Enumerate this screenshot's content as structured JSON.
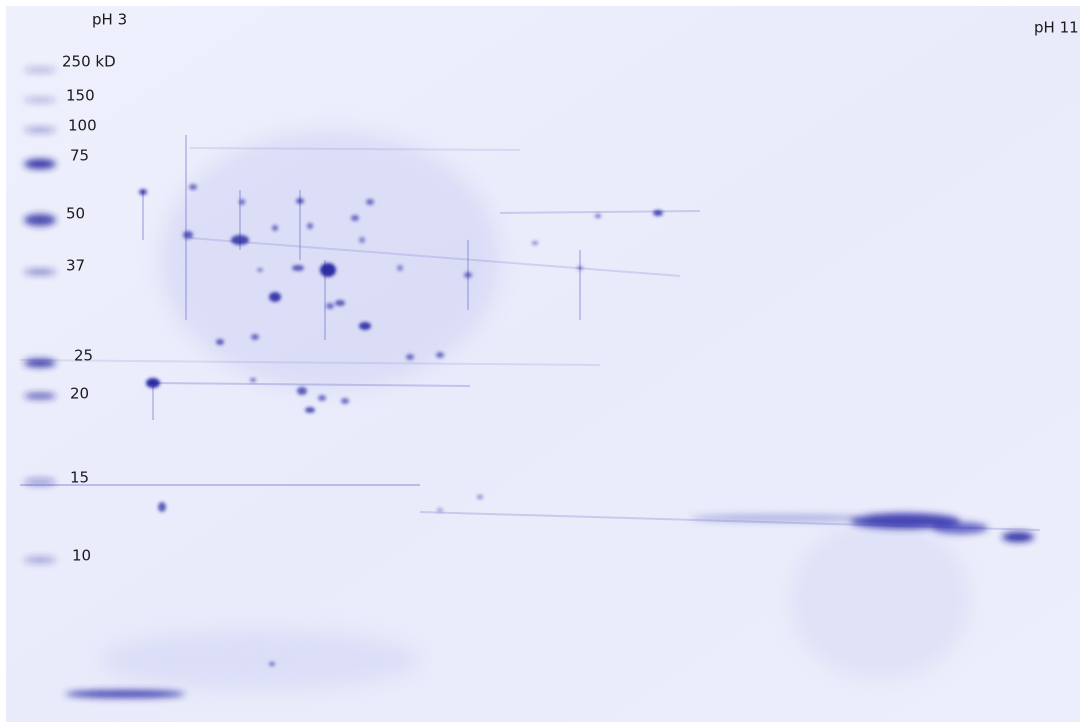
{
  "labels": {
    "ph_low": "pH 3",
    "ph_high": "pH 11"
  },
  "markers": [
    "250 kD",
    "150",
    "100",
    "75",
    "50",
    "37",
    "25",
    "20",
    "15",
    "10"
  ]
}
